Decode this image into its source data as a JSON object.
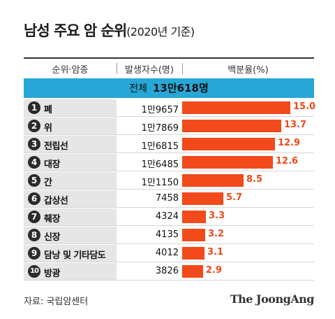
{
  "title": "남성 주요 암 순위",
  "subtitle": "(2020년 기준)",
  "headers": {
    "rank_type": "순위·암종",
    "count": "발생자수(명)",
    "percent": "백분율(%)"
  },
  "total": {
    "label": "전체",
    "value": "13만618명"
  },
  "source": "자료: 국립암센터",
  "logo": "The JoongAng",
  "colors": {
    "bar": "#f24a1a",
    "total_band": "#27a7d6",
    "label_text": "#ee4a16"
  },
  "chart_data": {
    "type": "bar",
    "orientation": "horizontal",
    "title": "남성 주요 암 순위",
    "subtitle": "(2020년 기준)",
    "categories": [
      "폐",
      "위",
      "전립선",
      "대장",
      "간",
      "갑상선",
      "췌장",
      "신장",
      "담낭 및 기타담도",
      "방광"
    ],
    "ranks": [
      "1",
      "2",
      "3",
      "4",
      "5",
      "6",
      "7",
      "8",
      "9",
      "10"
    ],
    "counts": [
      "1만9657",
      "1만7869",
      "1만6815",
      "1만6485",
      "1만1150",
      "7458",
      "4324",
      "4135",
      "4012",
      "3826"
    ],
    "values": [
      15.0,
      13.7,
      12.9,
      12.6,
      8.5,
      5.7,
      3.3,
      3.2,
      3.1,
      2.9
    ],
    "value_labels": [
      "15.0",
      "13.7",
      "12.9",
      "12.6",
      "8.5",
      "5.7",
      "3.3",
      "3.2",
      "3.1",
      "2.9"
    ],
    "xlim": [
      0,
      15.0
    ]
  }
}
